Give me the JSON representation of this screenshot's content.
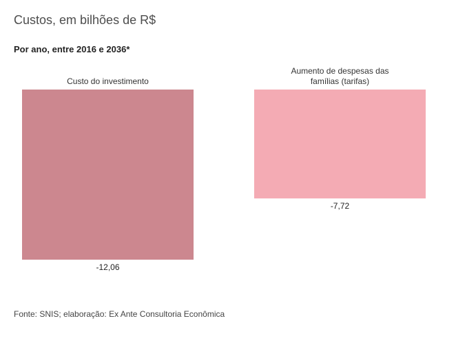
{
  "title": "Custos, em bilhões de R$",
  "subtitle": "Por ano, entre 2016 e 2036*",
  "source": "Fonte: SNIS; elaboração: Ex Ante Consultoria Econômica",
  "chart_data": {
    "type": "bar",
    "categories": [
      "Custo do investimento",
      "Aumento de despesas das famílias (tarifas)"
    ],
    "category_label_lines": [
      [
        "Custo do investimento"
      ],
      [
        "Aumento de despesas das",
        "famílias (tarifas)"
      ]
    ],
    "values": [
      -12.06,
      -7.72
    ],
    "value_labels": [
      "-12,06",
      "-7,72"
    ],
    "colors": [
      "#cc878f",
      "#f4abb4"
    ],
    "ylim": [
      -12.06,
      0
    ],
    "xlabel": "",
    "ylabel": "",
    "grid": false,
    "legend": "none"
  }
}
